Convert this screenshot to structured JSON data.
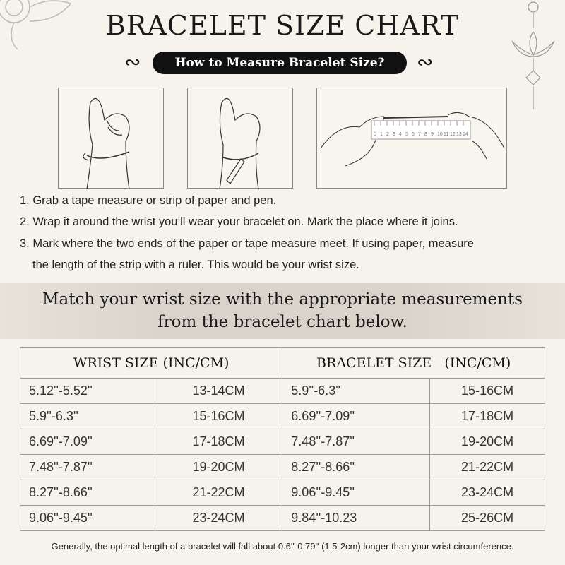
{
  "title": "BRACELET SIZE CHART",
  "subtitle": "How to Measure Bracelet Size?",
  "ruler_marks": [
    "0",
    "1",
    "2",
    "3",
    "4",
    "5",
    "6",
    "7",
    "8",
    "9",
    "10",
    "11",
    "12",
    "13",
    "14"
  ],
  "steps": [
    "1. Grab a tape measure or strip of paper and pen.",
    "2. Wrap it around the wrist you’ll wear your bracelet on. Mark the place where it joins.",
    "3. Mark where the two ends of the paper or tape measure meet. If using paper, measure",
    "the length of the strip with a ruler. This would be your wrist size."
  ],
  "band": [
    "Match your wrist size with the appropriate measurements",
    "from the bracelet chart below."
  ],
  "table": {
    "headers": [
      "WRIST SIZE (INC/CM)",
      "BRACELET SIZE   (INC/CM)"
    ],
    "rows": [
      [
        "5.12''-5.52''",
        "13-14CM",
        "5.9''-6.3''",
        "15-16CM"
      ],
      [
        "5.9''-6.3''",
        "15-16CM",
        "6.69''-7.09''",
        "17-18CM"
      ],
      [
        "6.69''-7.09''",
        "17-18CM",
        "7.48''-7.87''",
        "19-20CM"
      ],
      [
        "7.48''-7.87''",
        "19-20CM",
        "8.27''-8.66''",
        "21-22CM"
      ],
      [
        "8.27''-8.66''",
        "21-22CM",
        "9.06''-9.45''",
        "23-24CM"
      ],
      [
        "9.06''-9.45''",
        "23-24CM",
        "9.84''-10.23",
        "25-26CM"
      ]
    ]
  },
  "footer": "Generally, the optimal length of a bracelet will fall about 0.6''-0.79'' (1.5-2cm) longer than your wrist circumference."
}
